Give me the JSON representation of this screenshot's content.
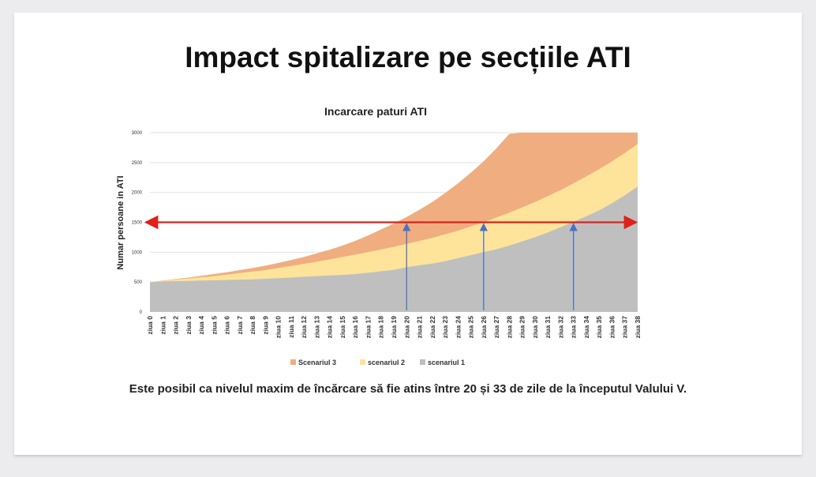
{
  "slide_title": "Impact spitalizare pe secțiile ATI",
  "caption": "Este posibil ca nivelul maxim de încărcare să fie atins între 20 și 33 de zile de la începutul Valului V.",
  "chart_data": {
    "type": "area",
    "title": "Incarcare paturi ATI",
    "xlabel": "",
    "ylabel": "Numar persoane in ATI",
    "ylim": [
      0,
      3000
    ],
    "yticks": [
      0,
      500,
      1000,
      1500,
      2000,
      2500,
      3000
    ],
    "grid": true,
    "legend_position": "bottom",
    "categories": [
      "ziua 0",
      "ziua 1",
      "ziua 2",
      "ziua 3",
      "ziua 4",
      "ziua 5",
      "ziua 6",
      "ziua 7",
      "ziua 8",
      "ziua 9",
      "ziua 10",
      "ziua 11",
      "ziua 12",
      "ziua 13",
      "ziua 14",
      "ziua 15",
      "ziua 16",
      "ziua 17",
      "ziua 18",
      "ziua 19",
      "ziua 20",
      "ziua 21",
      "ziua 22",
      "ziua 23",
      "ziua 24",
      "ziua 25",
      "ziua 26",
      "ziua 27",
      "ziua 28",
      "ziua 29",
      "ziua 30",
      "ziua 31",
      "ziua 32",
      "ziua 33",
      "ziua 34",
      "ziua 35",
      "ziua 36",
      "ziua 37",
      "ziua 38"
    ],
    "series": [
      {
        "name": "Scenariul 3",
        "color": "#f0ad80",
        "values": [
          500,
          525,
          550,
          575,
          605,
          635,
          665,
          700,
          735,
          775,
          820,
          870,
          920,
          980,
          1040,
          1110,
          1190,
          1280,
          1380,
          1480,
          1590,
          1710,
          1840,
          1990,
          2150,
          2330,
          2520,
          2740,
          2980,
          3000,
          3000,
          3000,
          3000,
          3000,
          3000,
          3000,
          3000,
          3000,
          3000
        ]
      },
      {
        "name": "scenariul 2",
        "color": "#fde49a",
        "values": [
          500,
          520,
          540,
          560,
          580,
          600,
          625,
          650,
          675,
          700,
          735,
          770,
          805,
          840,
          880,
          920,
          960,
          1000,
          1045,
          1090,
          1140,
          1190,
          1240,
          1300,
          1360,
          1430,
          1500,
          1580,
          1660,
          1750,
          1840,
          1940,
          2040,
          2150,
          2270,
          2390,
          2520,
          2660,
          2810
        ]
      },
      {
        "name": "scenariul 1",
        "color": "#bfbfbf",
        "values": [
          500,
          510,
          515,
          520,
          525,
          530,
          535,
          540,
          545,
          555,
          565,
          575,
          590,
          600,
          610,
          620,
          635,
          655,
          680,
          705,
          750,
          780,
          810,
          850,
          900,
          950,
          1000,
          1050,
          1110,
          1180,
          1250,
          1330,
          1420,
          1510,
          1600,
          1700,
          1820,
          1950,
          2100
        ]
      }
    ],
    "annotations": {
      "threshold_line": {
        "value": 1500,
        "color": "#e0201b"
      },
      "arrows_at_days": [
        20,
        26,
        33
      ],
      "arrow_color": "#4a72c4"
    }
  }
}
